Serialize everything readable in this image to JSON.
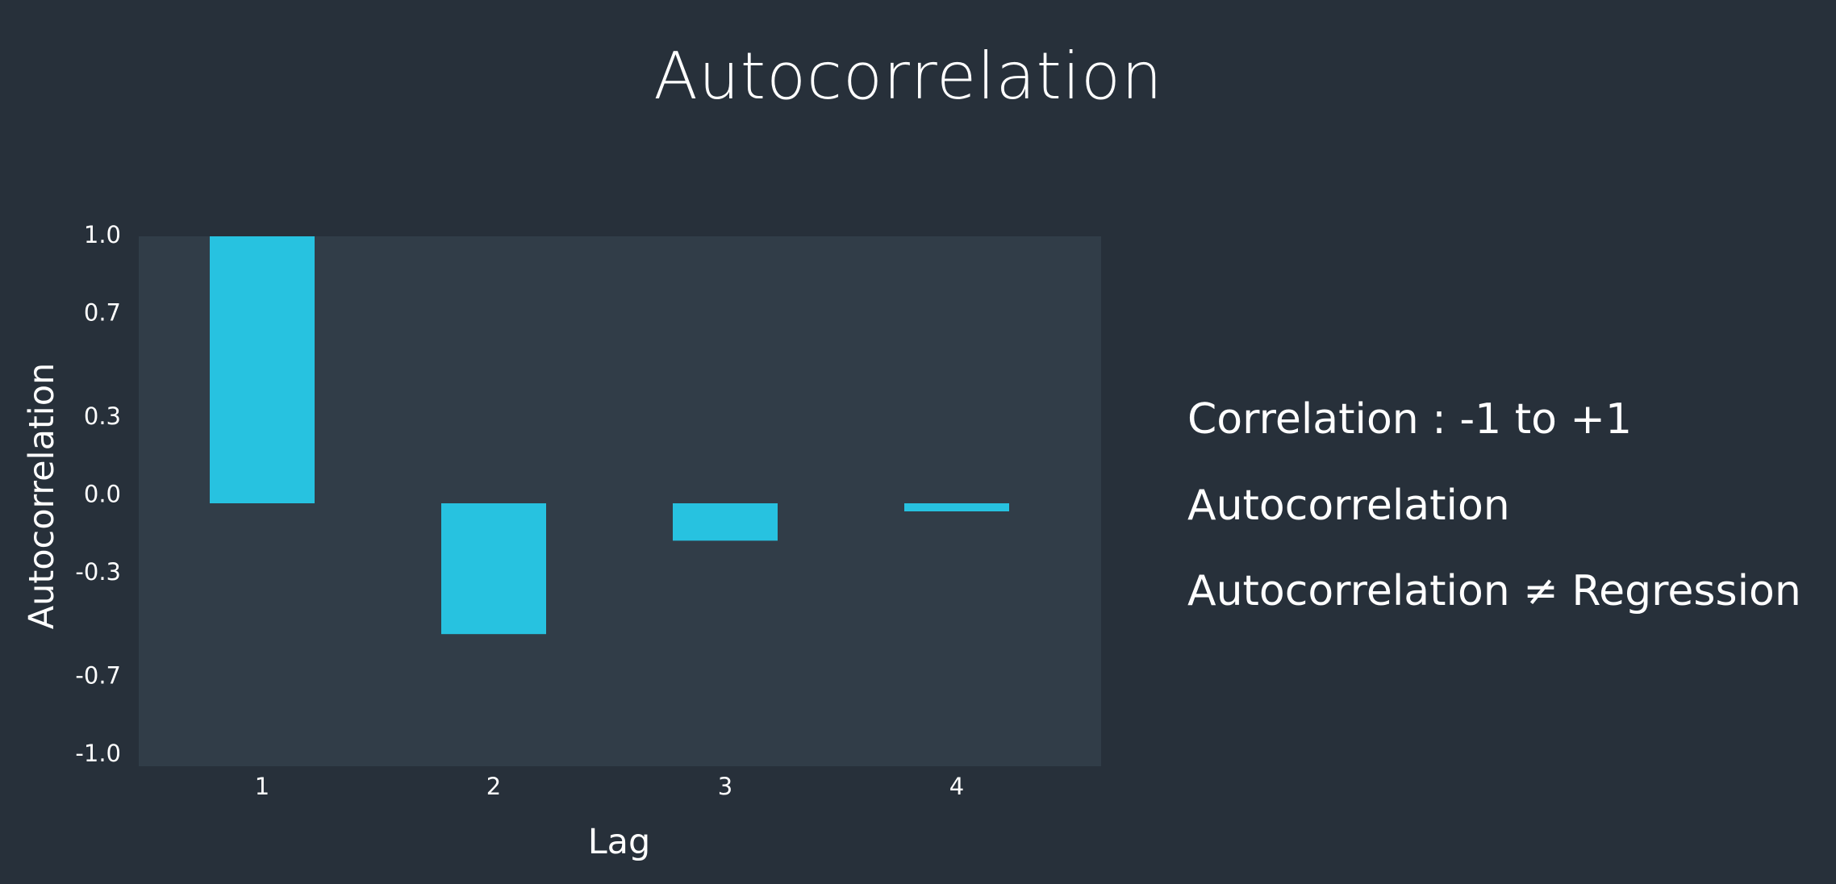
{
  "title": "Autocorrelation",
  "chart_data": {
    "type": "bar",
    "title": "Autocorrelation",
    "xlabel": "Lag",
    "ylabel": "Autocorrelation",
    "categories": [
      "1",
      "2",
      "3",
      "4"
    ],
    "values": [
      1.0,
      -0.49,
      -0.14,
      -0.03
    ],
    "ylim": [
      -1.0,
      1.0
    ],
    "yticks": [
      "1.0",
      "0.7",
      "0.3",
      "0.0",
      "-0.3",
      "-0.7",
      "-1.0"
    ],
    "grid": false,
    "colors": {
      "bar": "#27c2e0",
      "plot_background": "#313d48",
      "page_background": "#27303a"
    }
  },
  "notes": [
    "Correlation : -1 to +1",
    "Autocorrelation",
    "Autocorrelation ≠ Regression"
  ]
}
